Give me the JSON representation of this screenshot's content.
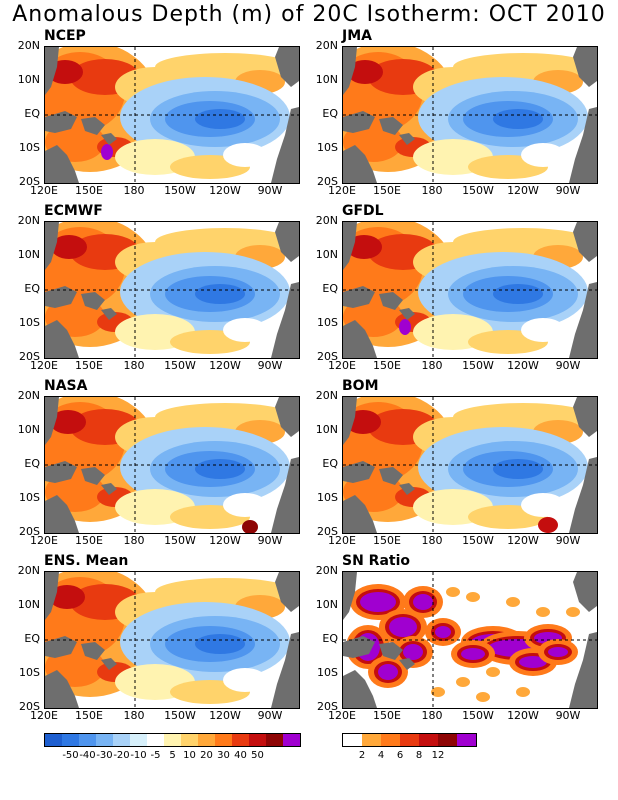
{
  "title": "Anomalous Depth (m) of 20C Isotherm: OCT 2010",
  "lat_labels": [
    "20N",
    "10N",
    "EQ",
    "10S",
    "20S"
  ],
  "lon_labels": [
    "120E",
    "150E",
    "180",
    "150W",
    "120W",
    "90W"
  ],
  "panels": [
    {
      "label": "NCEP",
      "type": "anomaly"
    },
    {
      "label": "JMA",
      "type": "anomaly"
    },
    {
      "label": "ECMWF",
      "type": "anomaly"
    },
    {
      "label": "GFDL",
      "type": "anomaly"
    },
    {
      "label": "NASA",
      "type": "anomaly"
    },
    {
      "label": "BOM",
      "type": "anomaly"
    },
    {
      "label": "ENS. Mean",
      "type": "anomaly"
    },
    {
      "label": "SN Ratio",
      "type": "snr"
    }
  ],
  "anomaly_colorbar": {
    "colors": [
      "#1e5fd0",
      "#2f78e3",
      "#4f95ee",
      "#78b4f4",
      "#a9d2f8",
      "#d7f0fb",
      "#ffffff",
      "#fff3b0",
      "#ffd36b",
      "#ffa83a",
      "#ff7a1a",
      "#e83a10",
      "#c40e0e",
      "#8e0505",
      "#a000d0"
    ],
    "ticks": [
      "-50",
      "-40",
      "-30",
      "-20",
      "-10",
      "-5",
      "5",
      "10",
      "20",
      "30",
      "40",
      "50"
    ]
  },
  "snr_colorbar": {
    "colors": [
      "#ffffff",
      "#ffa83a",
      "#ff7a1a",
      "#e83a10",
      "#c40e0e",
      "#8e0505",
      "#a000d0"
    ],
    "ticks": [
      "2",
      "4",
      "6",
      "8",
      "12"
    ]
  },
  "colors": {
    "land": "#6e6e6e",
    "border": "#000000"
  }
}
